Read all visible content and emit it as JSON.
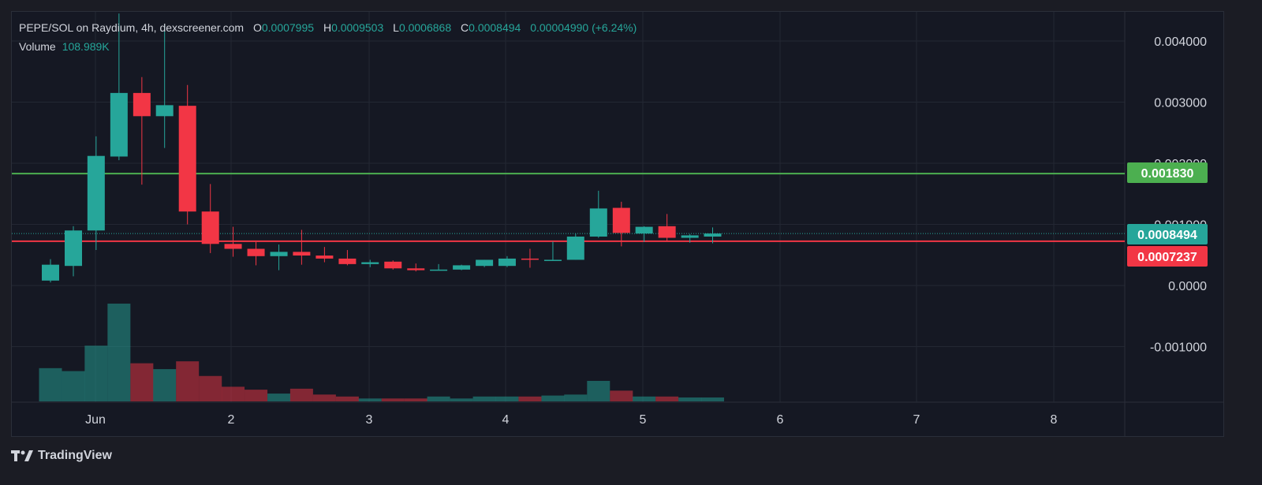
{
  "header": {
    "pair": "PEPE/SOL on Raydium, 4h, dexscreener.com",
    "open_label": "O",
    "open": "0.0007995",
    "high_label": "H",
    "high": "0.0009503",
    "low_label": "L",
    "low": "0.0006868",
    "close_label": "C",
    "close": "0.0008494",
    "change": "0.00004990 (+6.24%)",
    "volume_label": "Volume",
    "volume": "108.989K"
  },
  "brand": "TradingView",
  "colors": {
    "up": "#26a69a",
    "down": "#f23645",
    "support": "#f23645",
    "resistance": "#4caf50",
    "background": "#151823"
  },
  "chart_data": {
    "type": "candlestick",
    "y_axis_ticks": [
      "0.004000",
      "0.003000",
      "0.002000",
      "0.001000",
      "0.0000",
      "-0.001000"
    ],
    "x_axis_ticks": [
      "Jun",
      "2",
      "3",
      "4",
      "5",
      "6",
      "7",
      "8"
    ],
    "ylim": [
      -0.00165,
      0.00455
    ],
    "horizontal_lines": [
      {
        "name": "resistance",
        "value": 0.00183,
        "label": "0.001830",
        "color": "#4caf50"
      },
      {
        "name": "support",
        "value": 0.0007237,
        "label": "0.0007237",
        "color": "#f23645"
      }
    ],
    "last_price": {
      "value": 0.0008494,
      "label": "0.0008494",
      "color": "#26a69a"
    },
    "candles": [
      {
        "t": 0.0,
        "o": 8e-05,
        "h": 0.00043,
        "l": 5e-05,
        "c": 0.00034
      },
      {
        "t": 0.167,
        "o": 0.00032,
        "h": 0.00097,
        "l": 0.00015,
        "c": 0.0009
      },
      {
        "t": 0.333,
        "o": 0.0009,
        "h": 0.00244,
        "l": 0.00058,
        "c": 0.00212
      },
      {
        "t": 0.5,
        "o": 0.00211,
        "h": 0.00445,
        "l": 0.00205,
        "c": 0.00315
      },
      {
        "t": 0.667,
        "o": 0.00315,
        "h": 0.00341,
        "l": 0.00165,
        "c": 0.00277
      },
      {
        "t": 0.833,
        "o": 0.00277,
        "h": 0.00427,
        "l": 0.00225,
        "c": 0.00295
      },
      {
        "t": 1.0,
        "o": 0.00294,
        "h": 0.00328,
        "l": 0.001,
        "c": 0.00121
      },
      {
        "t": 1.167,
        "o": 0.00121,
        "h": 0.00166,
        "l": 0.00053,
        "c": 0.00068
      },
      {
        "t": 1.333,
        "o": 0.00068,
        "h": 0.00096,
        "l": 0.00047,
        "c": 0.0006
      },
      {
        "t": 1.5,
        "o": 0.0006,
        "h": 0.00071,
        "l": 0.00033,
        "c": 0.00048
      },
      {
        "t": 1.667,
        "o": 0.00048,
        "h": 0.00067,
        "l": 0.00025,
        "c": 0.00055
      },
      {
        "t": 1.833,
        "o": 0.00055,
        "h": 0.00091,
        "l": 0.00034,
        "c": 0.00049
      },
      {
        "t": 2.0,
        "o": 0.00049,
        "h": 0.00063,
        "l": 0.00038,
        "c": 0.00044
      },
      {
        "t": 2.167,
        "o": 0.00044,
        "h": 0.00058,
        "l": 0.00033,
        "c": 0.00035
      },
      {
        "t": 2.333,
        "o": 0.00035,
        "h": 0.00042,
        "l": 0.0003,
        "c": 0.00038
      },
      {
        "t": 2.5,
        "o": 0.00039,
        "h": 0.00041,
        "l": 0.00026,
        "c": 0.00028
      },
      {
        "t": 2.667,
        "o": 0.00028,
        "h": 0.00036,
        "l": 0.00023,
        "c": 0.00025
      },
      {
        "t": 2.833,
        "o": 0.00025,
        "h": 0.00035,
        "l": 0.00025,
        "c": 0.00026
      },
      {
        "t": 3.0,
        "o": 0.00026,
        "h": 0.00034,
        "l": 0.00025,
        "c": 0.00033
      },
      {
        "t": 3.167,
        "o": 0.00032,
        "h": 0.00042,
        "l": 0.0003,
        "c": 0.00042
      },
      {
        "t": 3.333,
        "o": 0.00032,
        "h": 0.00048,
        "l": 0.0003,
        "c": 0.00044
      },
      {
        "t": 3.5,
        "o": 0.00044,
        "h": 0.0006,
        "l": 0.00029,
        "c": 0.00043
      },
      {
        "t": 3.667,
        "o": 0.00042,
        "h": 0.00072,
        "l": 0.00042,
        "c": 0.00042
      },
      {
        "t": 3.833,
        "o": 0.00042,
        "h": 0.00085,
        "l": 0.00042,
        "c": 0.0008
      },
      {
        "t": 4.0,
        "o": 0.0008,
        "h": 0.00155,
        "l": 0.00078,
        "c": 0.00126
      },
      {
        "t": 4.167,
        "o": 0.00127,
        "h": 0.00137,
        "l": 0.00064,
        "c": 0.00086
      },
      {
        "t": 4.333,
        "o": 0.00085,
        "h": 0.00097,
        "l": 0.00071,
        "c": 0.00096
      },
      {
        "t": 4.5,
        "o": 0.00097,
        "h": 0.00117,
        "l": 0.00072,
        "c": 0.00078
      },
      {
        "t": 4.667,
        "o": 0.00078,
        "h": 0.00084,
        "l": 0.0007,
        "c": 0.00082
      },
      {
        "t": 4.833,
        "o": 0.0008,
        "h": 0.00095,
        "l": 0.00069,
        "c": 0.00085
      }
    ],
    "volume_relative": [
      0.34,
      0.31,
      0.57,
      1.0,
      0.39,
      0.33,
      0.41,
      0.26,
      0.15,
      0.12,
      0.08,
      0.13,
      0.07,
      0.05,
      0.03,
      0.03,
      0.03,
      0.05,
      0.03,
      0.05,
      0.05,
      0.05,
      0.06,
      0.07,
      0.21,
      0.11,
      0.05,
      0.05,
      0.04,
      0.04
    ]
  }
}
